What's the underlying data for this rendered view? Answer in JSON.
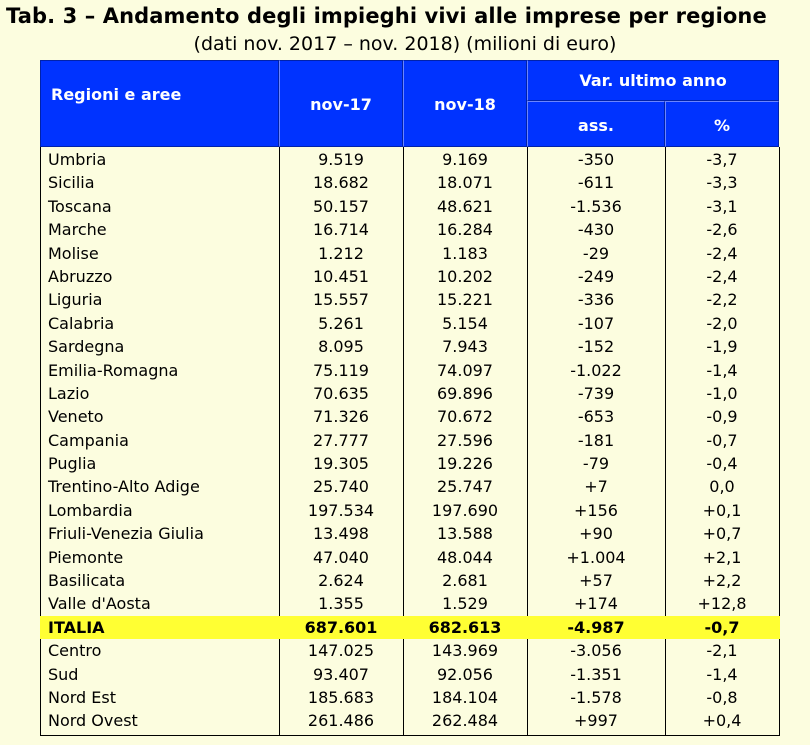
{
  "title": "Tab. 3 – Andamento degli impieghi vivi alle imprese per regione",
  "subtitle": "(dati nov. 2017 – nov. 2018) (milioni di euro)",
  "header": {
    "regions": "Regioni e aree",
    "nov17": "nov-17",
    "nov18": "nov-18",
    "var": "Var. ultimo anno",
    "ass": "ass.",
    "pct": "%"
  },
  "rows": [
    {
      "region": "Umbria",
      "nov17": "9.519",
      "nov18": "9.169",
      "ass": "-350",
      "pct": "-3,7"
    },
    {
      "region": "Sicilia",
      "nov17": "18.682",
      "nov18": "18.071",
      "ass": "-611",
      "pct": "-3,3"
    },
    {
      "region": "Toscana",
      "nov17": "50.157",
      "nov18": "48.621",
      "ass": "-1.536",
      "pct": "-3,1"
    },
    {
      "region": "Marche",
      "nov17": "16.714",
      "nov18": "16.284",
      "ass": "-430",
      "pct": "-2,6"
    },
    {
      "region": "Molise",
      "nov17": "1.212",
      "nov18": "1.183",
      "ass": "-29",
      "pct": "-2,4"
    },
    {
      "region": "Abruzzo",
      "nov17": "10.451",
      "nov18": "10.202",
      "ass": "-249",
      "pct": "-2,4"
    },
    {
      "region": "Liguria",
      "nov17": "15.557",
      "nov18": "15.221",
      "ass": "-336",
      "pct": "-2,2"
    },
    {
      "region": "Calabria",
      "nov17": "5.261",
      "nov18": "5.154",
      "ass": "-107",
      "pct": "-2,0"
    },
    {
      "region": "Sardegna",
      "nov17": "8.095",
      "nov18": "7.943",
      "ass": "-152",
      "pct": "-1,9"
    },
    {
      "region": "Emilia-Romagna",
      "nov17": "75.119",
      "nov18": "74.097",
      "ass": "-1.022",
      "pct": "-1,4"
    },
    {
      "region": "Lazio",
      "nov17": "70.635",
      "nov18": "69.896",
      "ass": "-739",
      "pct": "-1,0"
    },
    {
      "region": "Veneto",
      "nov17": "71.326",
      "nov18": "70.672",
      "ass": "-653",
      "pct": "-0,9"
    },
    {
      "region": "Campania",
      "nov17": "27.777",
      "nov18": "27.596",
      "ass": "-181",
      "pct": "-0,7"
    },
    {
      "region": "Puglia",
      "nov17": "19.305",
      "nov18": "19.226",
      "ass": "-79",
      "pct": "-0,4"
    },
    {
      "region": "Trentino-Alto Adige",
      "nov17": "25.740",
      "nov18": "25.747",
      "ass": "+7",
      "pct": "0,0"
    },
    {
      "region": "Lombardia",
      "nov17": "197.534",
      "nov18": "197.690",
      "ass": "+156",
      "pct": "+0,1"
    },
    {
      "region": "Friuli-Venezia Giulia",
      "nov17": "13.498",
      "nov18": "13.588",
      "ass": "+90",
      "pct": "+0,7"
    },
    {
      "region": "Piemonte",
      "nov17": "47.040",
      "nov18": "48.044",
      "ass": "+1.004",
      "pct": "+2,1"
    },
    {
      "region": "Basilicata",
      "nov17": "2.624",
      "nov18": "2.681",
      "ass": "+57",
      "pct": "+2,2"
    },
    {
      "region": "Valle d'Aosta",
      "nov17": "1.355",
      "nov18": "1.529",
      "ass": "+174",
      "pct": "+12,8"
    },
    {
      "region": "ITALIA",
      "nov17": "687.601",
      "nov18": "682.613",
      "ass": "-4.987",
      "pct": "-0,7",
      "highlight": true
    },
    {
      "region": "Centro",
      "nov17": "147.025",
      "nov18": "143.969",
      "ass": "-3.056",
      "pct": "-2,1"
    },
    {
      "region": "Sud",
      "nov17": "93.407",
      "nov18": "92.056",
      "ass": "-1.351",
      "pct": "-1,4"
    },
    {
      "region": "Nord Est",
      "nov17": "185.683",
      "nov18": "184.104",
      "ass": "-1.578",
      "pct": "-0,8"
    },
    {
      "region": "Nord Ovest",
      "nov17": "261.486",
      "nov18": "262.484",
      "ass": "+997",
      "pct": "+0,4"
    }
  ],
  "colors": {
    "header_bg": "#0033ff",
    "header_text": "#ffffff",
    "page_bg": "#fcfddf",
    "highlight_bg": "#ffff33"
  }
}
